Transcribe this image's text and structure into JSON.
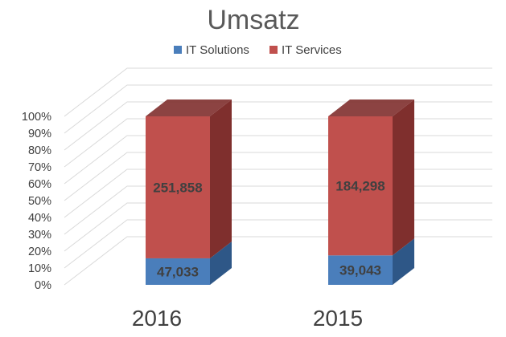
{
  "chart_data": {
    "type": "bar",
    "stacked": "percent",
    "three_d": true,
    "title": "Umsatz",
    "legend_position": "top",
    "categories": [
      "2016",
      "2015"
    ],
    "series": [
      {
        "name": "IT Solutions",
        "values": [
          47033,
          39043
        ],
        "labels": [
          "47,033",
          "39,043"
        ],
        "color": "#4a7ebb",
        "side_color": "#2e5787"
      },
      {
        "name": "IT Services",
        "values": [
          251858,
          184298
        ],
        "labels": [
          "251,858",
          "184,298"
        ],
        "color": "#c0504d",
        "side_color": "#7f2f2d"
      }
    ],
    "yticks": [
      "0%",
      "10%",
      "20%",
      "30%",
      "40%",
      "50%",
      "60%",
      "70%",
      "80%",
      "90%",
      "100%"
    ],
    "ylim": [
      0,
      100
    ],
    "grid": true
  }
}
